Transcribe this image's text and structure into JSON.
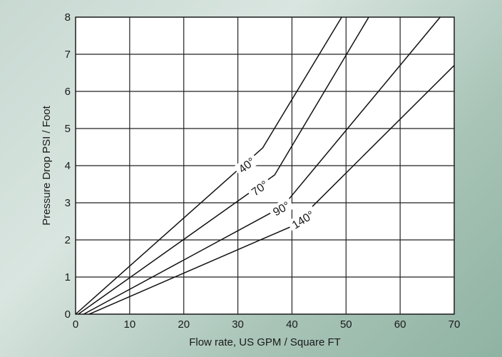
{
  "chart_data": {
    "type": "line",
    "title": "",
    "xlabel": "Flow rate, US GPM / Square FT",
    "ylabel": "Pressure Drop PSI / Foot",
    "xlim": [
      0,
      70
    ],
    "ylim": [
      0,
      8
    ],
    "xticks": [
      "0",
      "10",
      "20",
      "30",
      "40",
      "50",
      "60",
      "70"
    ],
    "yticks": [
      "0",
      "1",
      "2",
      "3",
      "4",
      "5",
      "6",
      "7",
      "8"
    ],
    "grid": true,
    "legend": "none",
    "colors": {
      "line": "#111111",
      "plot_background": "#ffffff",
      "grid": "#222222"
    },
    "series": [
      {
        "name": "40°",
        "points": [
          [
            0,
            0
          ],
          [
            34.6,
            4.48
          ],
          [
            49.2,
            8
          ]
        ],
        "label": {
          "x": 31.6,
          "y": 4.02,
          "angle": -38
        }
      },
      {
        "name": "70°",
        "points": [
          [
            0.5,
            0
          ],
          [
            36.8,
            3.75
          ],
          [
            54.2,
            8
          ]
        ],
        "label": {
          "x": 34.0,
          "y": 3.4,
          "angle": -36
        }
      },
      {
        "name": "90°",
        "points": [
          [
            1.5,
            0
          ],
          [
            38.3,
            2.9
          ],
          [
            67.4,
            8
          ]
        ],
        "label": {
          "x": 38.0,
          "y": 2.85,
          "angle": -30
        }
      },
      {
        "name": "140°",
        "points": [
          [
            2.5,
            0
          ],
          [
            40.2,
            2.38
          ],
          [
            70,
            6.7
          ]
        ],
        "label": {
          "x": 42.0,
          "y": 2.55,
          "angle": -32
        }
      }
    ]
  }
}
